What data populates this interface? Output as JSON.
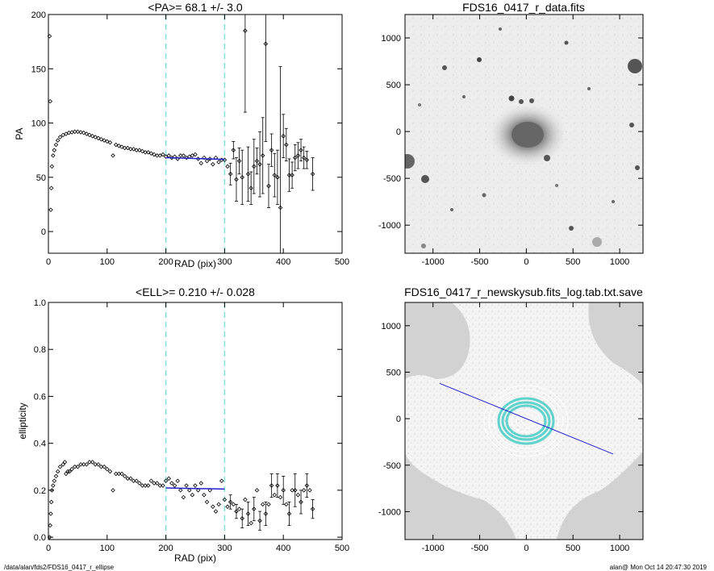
{
  "chart_data": [
    {
      "type": "scatter",
      "title": "<PA>=  68.1 +/-   3.0",
      "xlabel": "RAD (pix)",
      "ylabel": "PA",
      "xlim": [
        0,
        500
      ],
      "ylim": [
        -20,
        200
      ],
      "xticks": [
        "0",
        "100",
        "200",
        "300",
        "400",
        "500"
      ],
      "yticks": [
        "0",
        "50",
        "100",
        "150",
        "200"
      ],
      "vlines": [
        200,
        300
      ],
      "fit": {
        "x": [
          200,
          300
        ],
        "y": [
          68.1,
          66.5
        ]
      },
      "points": [
        [
          2,
          180
        ],
        [
          3,
          120
        ],
        [
          4,
          20
        ],
        [
          5,
          40
        ],
        [
          6,
          60
        ],
        [
          8,
          70
        ],
        [
          10,
          75
        ],
        [
          13,
          80
        ],
        [
          16,
          84
        ],
        [
          20,
          87
        ],
        [
          25,
          89
        ],
        [
          30,
          90
        ],
        [
          35,
          91
        ],
        [
          40,
          91.5
        ],
        [
          45,
          92
        ],
        [
          50,
          92
        ],
        [
          55,
          91.5
        ],
        [
          60,
          91
        ],
        [
          65,
          90
        ],
        [
          70,
          89
        ],
        [
          75,
          88
        ],
        [
          80,
          87
        ],
        [
          85,
          86
        ],
        [
          90,
          85
        ],
        [
          95,
          84
        ],
        [
          100,
          83
        ],
        [
          105,
          82
        ],
        [
          110,
          70
        ],
        [
          115,
          80
        ],
        [
          120,
          79
        ],
        [
          125,
          78
        ],
        [
          130,
          77
        ],
        [
          135,
          77
        ],
        [
          140,
          76
        ],
        [
          145,
          76
        ],
        [
          150,
          75
        ],
        [
          155,
          75
        ],
        [
          160,
          74
        ],
        [
          165,
          73
        ],
        [
          170,
          73
        ],
        [
          175,
          72
        ],
        [
          180,
          71
        ],
        [
          185,
          70
        ],
        [
          190,
          70
        ],
        [
          195,
          71
        ],
        [
          200,
          69
        ],
        [
          205,
          70
        ],
        [
          210,
          68
        ],
        [
          215,
          69
        ],
        [
          220,
          67
        ],
        [
          225,
          70
        ],
        [
          230,
          70
        ],
        [
          235,
          68
        ],
        [
          240,
          69
        ],
        [
          245,
          70
        ],
        [
          250,
          71
        ],
        [
          255,
          67
        ],
        [
          260,
          63
        ],
        [
          265,
          68
        ],
        [
          270,
          65
        ],
        [
          275,
          67
        ],
        [
          280,
          62
        ],
        [
          285,
          68
        ],
        [
          290,
          64
        ],
        [
          295,
          66
        ],
        [
          300,
          66
        ],
        [
          305,
          60
        ],
        [
          310,
          53
        ],
        [
          315,
          75
        ],
        [
          320,
          48
        ],
        [
          325,
          65
        ],
        [
          330,
          50
        ],
        [
          335,
          185
        ],
        [
          340,
          53
        ],
        [
          345,
          40
        ],
        [
          350,
          60
        ],
        [
          355,
          65
        ],
        [
          360,
          62
        ],
        [
          365,
          70
        ],
        [
          370,
          173
        ],
        [
          375,
          42
        ],
        [
          380,
          75
        ],
        [
          385,
          52
        ],
        [
          390,
          50
        ],
        [
          395,
          22
        ],
        [
          400,
          88
        ],
        [
          405,
          80
        ],
        [
          410,
          52
        ],
        [
          415,
          52
        ],
        [
          420,
          68
        ],
        [
          425,
          70
        ],
        [
          430,
          75
        ],
        [
          435,
          68
        ],
        [
          440,
          66
        ],
        [
          450,
          53
        ]
      ],
      "errors": [
        [
          310,
          10
        ],
        [
          315,
          8
        ],
        [
          320,
          20
        ],
        [
          325,
          12
        ],
        [
          330,
          25
        ],
        [
          335,
          75
        ],
        [
          340,
          25
        ],
        [
          345,
          15
        ],
        [
          350,
          25
        ],
        [
          355,
          12
        ],
        [
          360,
          30
        ],
        [
          365,
          35
        ],
        [
          370,
          90
        ],
        [
          375,
          20
        ],
        [
          380,
          15
        ],
        [
          385,
          20
        ],
        [
          390,
          25
        ],
        [
          395,
          130
        ],
        [
          400,
          20
        ],
        [
          405,
          15
        ],
        [
          410,
          15
        ],
        [
          415,
          12
        ],
        [
          420,
          12
        ],
        [
          425,
          12
        ],
        [
          430,
          10
        ],
        [
          435,
          10
        ],
        [
          440,
          8
        ],
        [
          450,
          15
        ]
      ]
    },
    {
      "type": "image",
      "title": "FDS16_0417_r_data.fits",
      "xlim": [
        -1300,
        1250
      ],
      "ylim": [
        -1300,
        1250
      ],
      "xticks": [
        "-1000",
        "-500",
        "0",
        "500",
        "1000"
      ],
      "yticks": [
        "-1000",
        "-500",
        "0",
        "500",
        "1000"
      ]
    },
    {
      "type": "scatter",
      "title": "<ELL>= 0.210 +/-  0.028",
      "xlabel": "RAD (pix)",
      "ylabel": "ellipticity",
      "xlim": [
        0,
        500
      ],
      "ylim": [
        -0.01,
        1.0
      ],
      "xticks": [
        "0",
        "100",
        "200",
        "300",
        "400",
        "500"
      ],
      "yticks": [
        "0.0",
        "0.2",
        "0.4",
        "0.6",
        "0.8",
        "1.0"
      ],
      "vlines": [
        200,
        300
      ],
      "fit": {
        "x": [
          200,
          300
        ],
        "y": [
          0.21,
          0.205
        ]
      },
      "points": [
        [
          2,
          0.0
        ],
        [
          3,
          0.05
        ],
        [
          4,
          0.1
        ],
        [
          5,
          0.15
        ],
        [
          6,
          0.2
        ],
        [
          8,
          0.22
        ],
        [
          10,
          0.24
        ],
        [
          13,
          0.26
        ],
        [
          16,
          0.28
        ],
        [
          20,
          0.3
        ],
        [
          25,
          0.31
        ],
        [
          28,
          0.32
        ],
        [
          30,
          0.27
        ],
        [
          33,
          0.28
        ],
        [
          36,
          0.28
        ],
        [
          40,
          0.29
        ],
        [
          45,
          0.3
        ],
        [
          50,
          0.3
        ],
        [
          55,
          0.31
        ],
        [
          60,
          0.31
        ],
        [
          65,
          0.31
        ],
        [
          70,
          0.32
        ],
        [
          75,
          0.32
        ],
        [
          80,
          0.31
        ],
        [
          85,
          0.31
        ],
        [
          90,
          0.3
        ],
        [
          95,
          0.3
        ],
        [
          100,
          0.29
        ],
        [
          105,
          0.28
        ],
        [
          110,
          0.2
        ],
        [
          115,
          0.27
        ],
        [
          120,
          0.27
        ],
        [
          125,
          0.27
        ],
        [
          130,
          0.26
        ],
        [
          135,
          0.25
        ],
        [
          140,
          0.25
        ],
        [
          145,
          0.24
        ],
        [
          150,
          0.24
        ],
        [
          155,
          0.23
        ],
        [
          160,
          0.22
        ],
        [
          165,
          0.22
        ],
        [
          170,
          0.22
        ],
        [
          175,
          0.24
        ],
        [
          180,
          0.23
        ],
        [
          185,
          0.23
        ],
        [
          190,
          0.22
        ],
        [
          195,
          0.22
        ],
        [
          200,
          0.24
        ],
        [
          205,
          0.25
        ],
        [
          210,
          0.23
        ],
        [
          215,
          0.22
        ],
        [
          220,
          0.24
        ],
        [
          225,
          0.2
        ],
        [
          230,
          0.17
        ],
        [
          235,
          0.22
        ],
        [
          240,
          0.2
        ],
        [
          245,
          0.18
        ],
        [
          250,
          0.22
        ],
        [
          255,
          0.2
        ],
        [
          260,
          0.23
        ],
        [
          265,
          0.18
        ],
        [
          270,
          0.15
        ],
        [
          275,
          0.2
        ],
        [
          280,
          0.13
        ],
        [
          285,
          0.11
        ],
        [
          290,
          0.14
        ],
        [
          295,
          0.24
        ],
        [
          300,
          0.16
        ],
        [
          305,
          0.13
        ],
        [
          310,
          0.15
        ],
        [
          315,
          0.14
        ],
        [
          320,
          0.11
        ],
        [
          325,
          0.12
        ],
        [
          330,
          0.08
        ],
        [
          335,
          0.16
        ],
        [
          340,
          0.1
        ],
        [
          345,
          0.06
        ],
        [
          350,
          0.12
        ],
        [
          355,
          0.2
        ],
        [
          360,
          0.07
        ],
        [
          365,
          0.14
        ],
        [
          370,
          0.1
        ],
        [
          375,
          0.14
        ],
        [
          380,
          0.22
        ],
        [
          385,
          0.18
        ],
        [
          390,
          0.22
        ],
        [
          395,
          0.17
        ],
        [
          400,
          0.2
        ],
        [
          405,
          0.14
        ],
        [
          410,
          0.1
        ],
        [
          415,
          0.2
        ],
        [
          420,
          0.2
        ],
        [
          425,
          0.18
        ],
        [
          430,
          0.15
        ],
        [
          435,
          0.2
        ],
        [
          440,
          0.22
        ],
        [
          445,
          0.2
        ],
        [
          450,
          0.12
        ]
      ],
      "errors": [
        [
          310,
          0.03
        ],
        [
          320,
          0.03
        ],
        [
          330,
          0.04
        ],
        [
          340,
          0.05
        ],
        [
          350,
          0.05
        ],
        [
          360,
          0.04
        ],
        [
          370,
          0.05
        ],
        [
          380,
          0.05
        ],
        [
          390,
          0.05
        ],
        [
          400,
          0.06
        ],
        [
          410,
          0.05
        ],
        [
          420,
          0.07
        ],
        [
          430,
          0.05
        ],
        [
          440,
          0.05
        ],
        [
          450,
          0.04
        ]
      ]
    },
    {
      "type": "image",
      "title": "FDS16_0417_r_newskysub.fits_log.tab.txt.save",
      "xlim": [
        -1300,
        1250
      ],
      "ylim": [
        -1300,
        1250
      ],
      "xticks": [
        "-1000",
        "-500",
        "0",
        "500",
        "1000"
      ],
      "yticks": [
        "-1000",
        "-500",
        "0",
        "500",
        "1000"
      ],
      "line": {
        "x": [
          -930,
          930
        ],
        "y": [
          380,
          -380
        ]
      }
    }
  ],
  "footer": {
    "left": "/data/alan/fds2/FDS16_0417_r_ellipse",
    "right": "alan@  Mon Oct 14 20:47:30 2019"
  },
  "colors": {
    "fit": "#2222cc",
    "vline": "#7fe0e0",
    "ring_cyan": "#5fd2cc"
  }
}
